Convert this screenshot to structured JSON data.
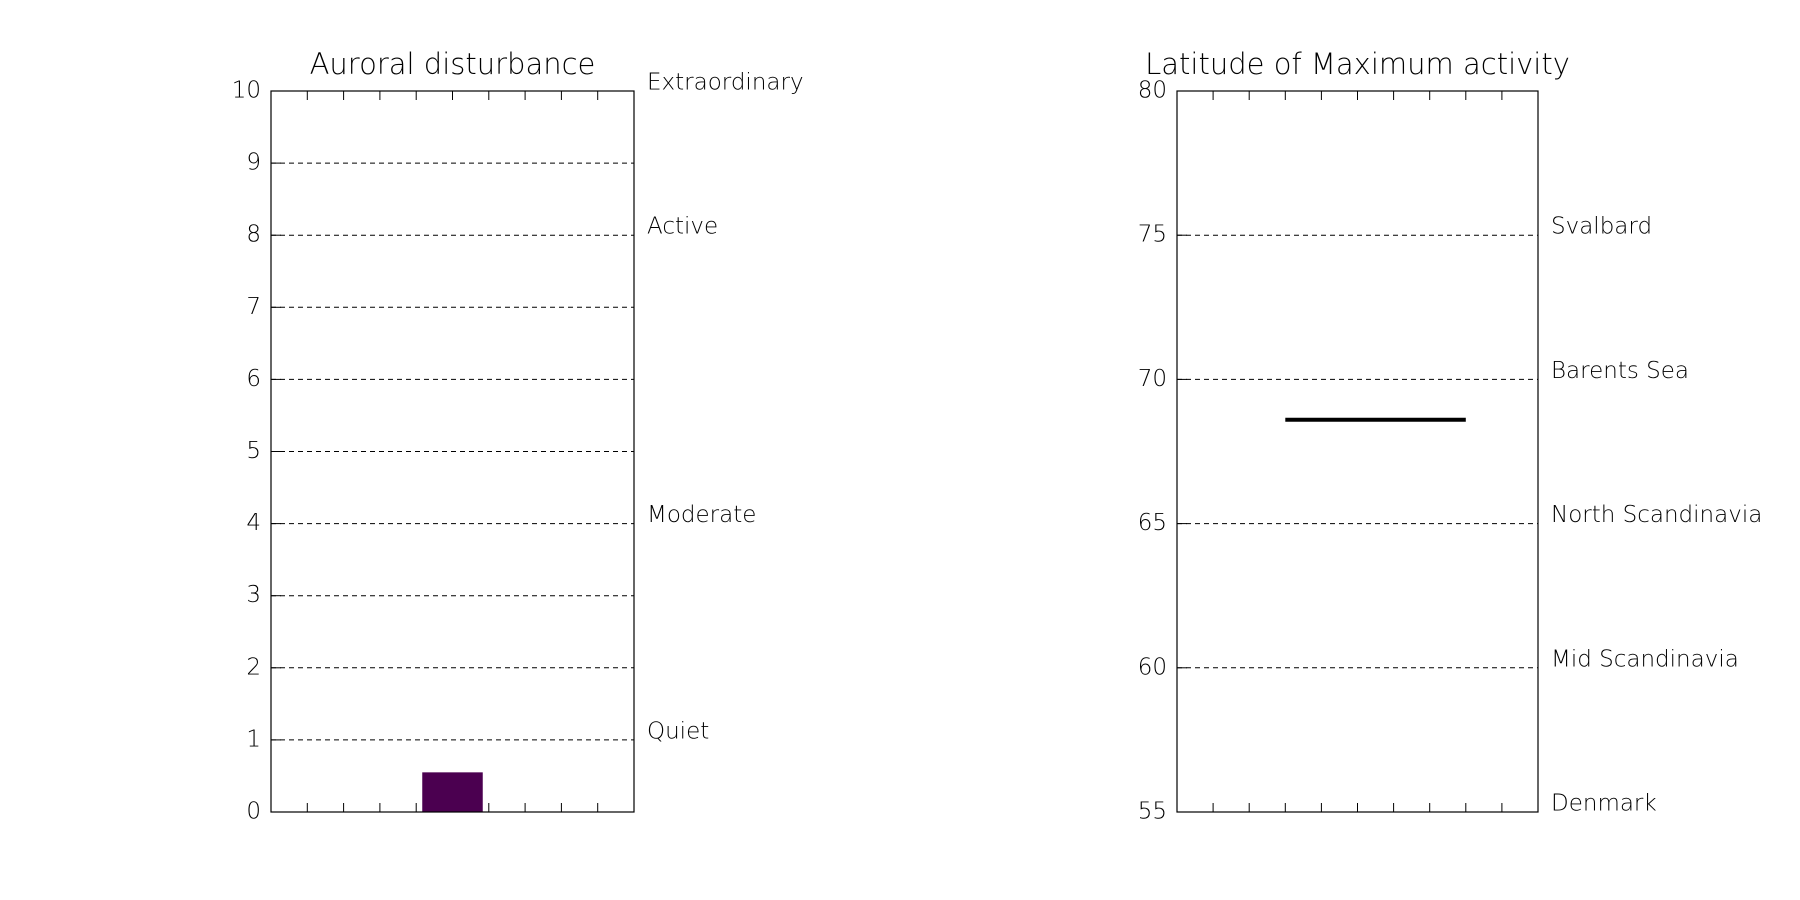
{
  "chart_data": [
    {
      "type": "bar",
      "title": "Auroral disturbance",
      "categories": [
        null
      ],
      "values": [
        0.55
      ],
      "color": "#4b0050",
      "ylim": [
        0,
        10
      ],
      "yticks": [
        0,
        1,
        2,
        3,
        4,
        5,
        6,
        7,
        8,
        9,
        10
      ],
      "grid": true,
      "annotations": [
        {
          "value": 10,
          "label": "Extraordinary",
          "color": "#ff3333"
        },
        {
          "value": 8,
          "label": "Active",
          "color": "#ff3333"
        },
        {
          "value": 4,
          "label": "Moderate",
          "color": "#33ee88"
        },
        {
          "value": 1,
          "label": "Quiet",
          "color": "#000000"
        }
      ]
    },
    {
      "type": "hline",
      "title": "Latitude of Maximum activity",
      "values": [
        68.6
      ],
      "color": "#000000",
      "ylim": [
        55,
        80
      ],
      "yticks": [
        55,
        60,
        65,
        70,
        75,
        80
      ],
      "grid": true,
      "annotations": [
        {
          "value": 75,
          "label": "Svalbard",
          "color": "#000000"
        },
        {
          "value": 70,
          "label": "Barents Sea",
          "color": "#000000"
        },
        {
          "value": 65,
          "label": "North Scandinavia",
          "color": "#000000"
        },
        {
          "value": 60,
          "label": "Mid Scandinavia",
          "color": "#000000"
        },
        {
          "value": 55,
          "label": "Denmark",
          "color": "#000000"
        }
      ]
    }
  ]
}
